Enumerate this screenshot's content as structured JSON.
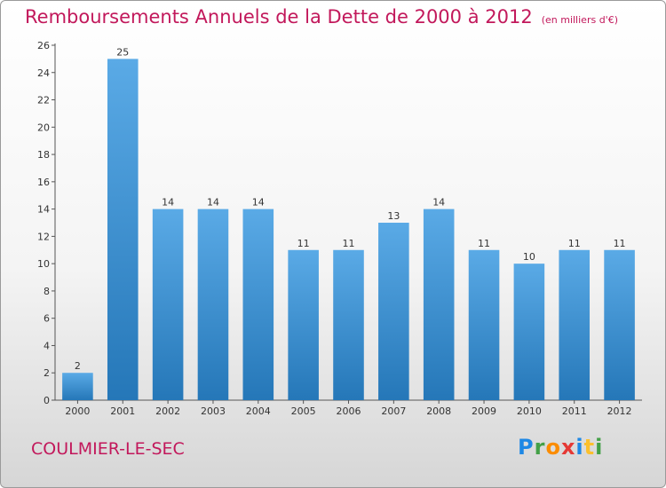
{
  "header": {
    "title": "Remboursements Annuels de la Dette de 2000 à 2012",
    "unit": "(en milliers d'€)"
  },
  "footer": {
    "town": "COULMIER-LE-SEC",
    "brand_letters": [
      {
        "ch": "P",
        "color": "#1e88e5"
      },
      {
        "ch": "r",
        "color": "#43a047"
      },
      {
        "ch": "o",
        "color": "#fb8c00"
      },
      {
        "ch": "x",
        "color": "#e53935"
      },
      {
        "ch": "i",
        "color": "#1e88e5"
      },
      {
        "ch": "t",
        "color": "#fbc02d"
      },
      {
        "ch": "i",
        "color": "#43a047"
      }
    ]
  },
  "colors": {
    "bar_top": "#5aaae6",
    "bar_bottom": "#2577b8",
    "accent": "#c2185b"
  },
  "chart_data": {
    "type": "bar",
    "categories": [
      "2000",
      "2001",
      "2002",
      "2003",
      "2004",
      "2005",
      "2006",
      "2007",
      "2008",
      "2009",
      "2010",
      "2011",
      "2012"
    ],
    "values": [
      2,
      25,
      14,
      14,
      14,
      11,
      11,
      13,
      14,
      11,
      10,
      11,
      11
    ],
    "title": "Remboursements Annuels de la Dette de 2000 à 2012",
    "xlabel": "",
    "ylabel": "",
    "ylim": [
      0,
      26
    ],
    "yticks": [
      0,
      2,
      4,
      6,
      8,
      10,
      12,
      14,
      16,
      18,
      20,
      22,
      24,
      26
    ],
    "grid": false,
    "data_labels": true
  }
}
